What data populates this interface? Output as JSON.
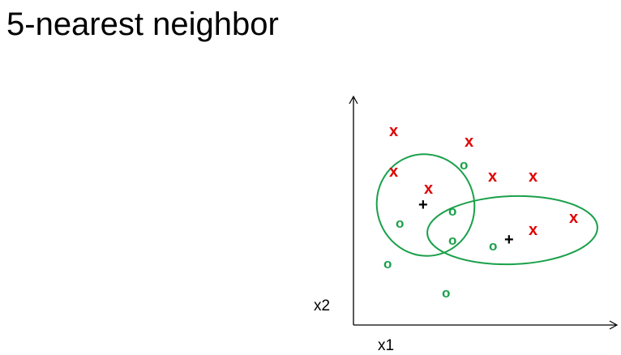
{
  "title": "5-nearest neighbor",
  "axes": {
    "x_label": "x1",
    "y_label": "x2"
  },
  "colors": {
    "class_x": "#e00000",
    "class_o": "#1aa04a",
    "query": "#000000",
    "neighborhood": "#1aa04a",
    "axis": "#000000"
  },
  "legend_symbols": {
    "x": "x",
    "o": "o",
    "plus": "+"
  }
}
